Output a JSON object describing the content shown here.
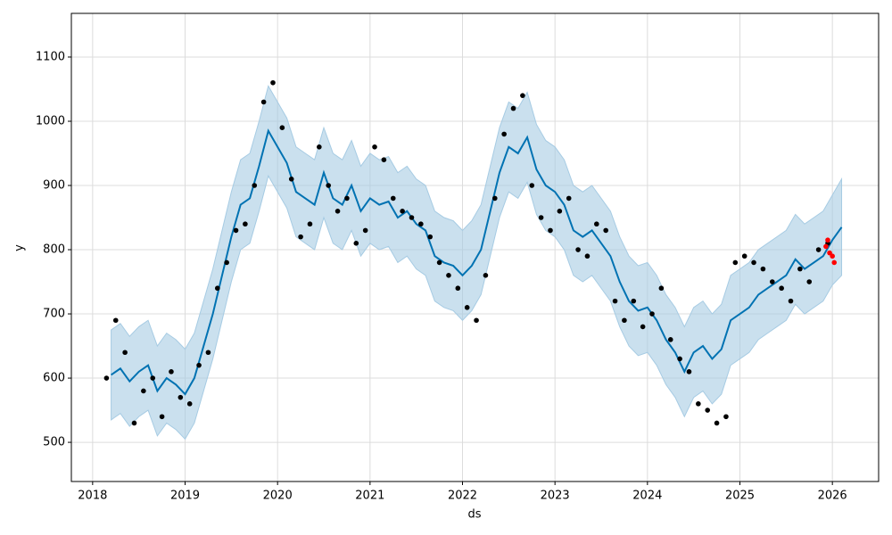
{
  "chart_data": {
    "type": "scatter",
    "xlabel": "ds",
    "ylabel": "y",
    "xlim": [
      2017.77,
      2026.5
    ],
    "xticks": [
      2018,
      2019,
      2020,
      2021,
      2022,
      2023,
      2024,
      2025,
      2026
    ],
    "ylim": [
      439,
      1168
    ],
    "yticks": [
      500,
      600,
      700,
      800,
      900,
      1000,
      1100
    ],
    "grid": true,
    "series": [
      {
        "type": "line",
        "color": "#0072B2",
        "band_color": "#a6cbe3",
        "x": [
          2018.2,
          2018.3,
          2018.4,
          2018.5,
          2018.6,
          2018.7,
          2018.8,
          2018.9,
          2019.0,
          2019.1,
          2019.2,
          2019.3,
          2019.4,
          2019.5,
          2019.6,
          2019.7,
          2019.8,
          2019.9,
          2020.0,
          2020.1,
          2020.2,
          2020.3,
          2020.4,
          2020.5,
          2020.6,
          2020.7,
          2020.8,
          2020.9,
          2021.0,
          2021.1,
          2021.2,
          2021.3,
          2021.4,
          2021.5,
          2021.6,
          2021.7,
          2021.8,
          2021.9,
          2022.0,
          2022.1,
          2022.2,
          2022.3,
          2022.4,
          2022.5,
          2022.6,
          2022.7,
          2022.8,
          2022.9,
          2023.0,
          2023.1,
          2023.2,
          2023.3,
          2023.4,
          2023.5,
          2023.6,
          2023.7,
          2023.8,
          2023.9,
          2024.0,
          2024.1,
          2024.2,
          2024.3,
          2024.4,
          2024.5,
          2024.6,
          2024.7,
          2024.8,
          2024.9,
          2025.0,
          2025.1,
          2025.2,
          2025.3,
          2025.4,
          2025.5,
          2025.6,
          2025.7,
          2025.8,
          2025.9,
          2026.0,
          2026.1
        ],
        "values": [
          605,
          615,
          595,
          610,
          620,
          580,
          600,
          590,
          575,
          600,
          650,
          700,
          760,
          820,
          870,
          880,
          930,
          985,
          960,
          935,
          890,
          880,
          870,
          920,
          880,
          870,
          900,
          860,
          880,
          870,
          875,
          850,
          860,
          840,
          830,
          790,
          780,
          775,
          760,
          775,
          800,
          860,
          920,
          960,
          950,
          975,
          925,
          900,
          890,
          870,
          830,
          820,
          830,
          810,
          790,
          750,
          720,
          705,
          710,
          690,
          660,
          640,
          610,
          640,
          650,
          630,
          645,
          690,
          700,
          710,
          730,
          740,
          750,
          760,
          785,
          770,
          780,
          790,
          815,
          835
        ],
        "lower": [
          535,
          545,
          525,
          540,
          550,
          510,
          530,
          520,
          505,
          530,
          580,
          630,
          690,
          750,
          800,
          810,
          860,
          915,
          890,
          865,
          820,
          810,
          800,
          850,
          810,
          800,
          830,
          790,
          810,
          800,
          805,
          780,
          790,
          770,
          760,
          720,
          710,
          705,
          690,
          705,
          730,
          790,
          850,
          890,
          880,
          905,
          855,
          830,
          820,
          800,
          760,
          750,
          760,
          740,
          720,
          680,
          650,
          635,
          640,
          620,
          590,
          570,
          540,
          570,
          580,
          560,
          575,
          620,
          630,
          640,
          660,
          670,
          680,
          690,
          715,
          700,
          710,
          720,
          745,
          760
        ],
        "upper": [
          675,
          685,
          665,
          680,
          690,
          650,
          670,
          660,
          645,
          670,
          720,
          770,
          830,
          890,
          940,
          950,
          1000,
          1055,
          1030,
          1005,
          960,
          950,
          940,
          990,
          950,
          940,
          970,
          930,
          950,
          940,
          945,
          920,
          930,
          910,
          900,
          860,
          850,
          845,
          830,
          845,
          870,
          930,
          990,
          1030,
          1020,
          1045,
          995,
          970,
          960,
          940,
          900,
          890,
          900,
          880,
          860,
          820,
          790,
          775,
          780,
          760,
          730,
          710,
          680,
          710,
          720,
          700,
          715,
          760,
          770,
          780,
          800,
          810,
          820,
          830,
          855,
          840,
          850,
          860,
          885,
          910
        ]
      },
      {
        "type": "scatter",
        "color": "#000000",
        "x": [
          2018.15,
          2018.25,
          2018.35,
          2018.45,
          2018.55,
          2018.65,
          2018.75,
          2018.85,
          2018.95,
          2019.05,
          2019.15,
          2019.25,
          2019.35,
          2019.45,
          2019.55,
          2019.65,
          2019.75,
          2019.85,
          2019.95,
          2020.05,
          2020.15,
          2020.25,
          2020.35,
          2020.45,
          2020.55,
          2020.65,
          2020.75,
          2020.85,
          2020.95,
          2021.05,
          2021.15,
          2021.25,
          2021.35,
          2021.45,
          2021.55,
          2021.65,
          2021.75,
          2021.85,
          2021.95,
          2022.05,
          2022.15,
          2022.25,
          2022.35,
          2022.45,
          2022.55,
          2022.65,
          2022.75,
          2022.85,
          2022.95,
          2023.05,
          2023.15,
          2023.25,
          2023.35,
          2023.45,
          2023.55,
          2023.65,
          2023.75,
          2023.85,
          2023.95,
          2024.05,
          2024.15,
          2024.25,
          2024.35,
          2024.45,
          2024.55,
          2024.65,
          2024.75,
          2024.85,
          2024.95,
          2025.05,
          2025.15,
          2025.25,
          2025.35,
          2025.45,
          2025.55,
          2025.65,
          2025.75,
          2025.85,
          2025.95
        ],
        "values": [
          600,
          690,
          640,
          530,
          580,
          600,
          540,
          610,
          570,
          560,
          620,
          640,
          740,
          780,
          830,
          840,
          900,
          1030,
          1060,
          990,
          910,
          820,
          840,
          960,
          900,
          860,
          880,
          810,
          830,
          960,
          940,
          880,
          860,
          850,
          840,
          820,
          780,
          760,
          740,
          710,
          690,
          760,
          880,
          980,
          1020,
          1040,
          900,
          850,
          830,
          860,
          880,
          800,
          790,
          840,
          830,
          720,
          690,
          720,
          680,
          700,
          740,
          660,
          630,
          610,
          560,
          550,
          530,
          540,
          780,
          790,
          780,
          770,
          750,
          740,
          720,
          770,
          750,
          800,
          810
        ]
      },
      {
        "type": "scatter",
        "color": "#ff0000",
        "x": [
          2025.93,
          2025.95,
          2025.97,
          2026.0,
          2026.02
        ],
        "values": [
          805,
          815,
          795,
          790,
          780
        ]
      }
    ]
  }
}
